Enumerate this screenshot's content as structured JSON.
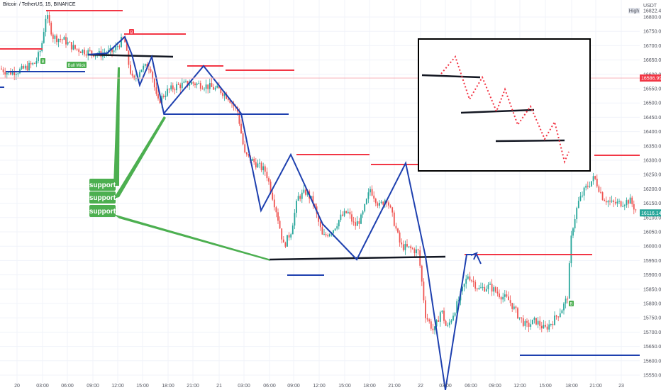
{
  "header": {
    "symbol_line": "Bitcoin / TetherUS, 15, BINANCE"
  },
  "chart_data": {
    "type": "candlestick",
    "title": "Bitcoin / TetherUS, 15, BINANCE",
    "currency_label": "USDT",
    "high_label": "High",
    "high_value": "16822.41",
    "price_badges": [
      {
        "label": "16586.99",
        "value": 16586.99,
        "color": "#f23645"
      },
      {
        "label": "16116.14",
        "value": 16116.14,
        "color": "#26a69a"
      }
    ],
    "y_ticks": [
      "16800.00",
      "16750.00",
      "16700.00",
      "16650.00",
      "16600.00",
      "16550.00",
      "16500.00",
      "16450.00",
      "16400.00",
      "16350.00",
      "16300.00",
      "16250.00",
      "16200.00",
      "16150.00",
      "16100.00",
      "16050.00",
      "16000.00",
      "15950.00",
      "15900.00",
      "15850.00",
      "15800.00",
      "15750.00",
      "15700.00",
      "15650.00",
      "15600.00",
      "15550.00"
    ],
    "ylim": [
      15540,
      16850
    ],
    "x_ticks": [
      "20",
      "03:00",
      "06:00",
      "09:00",
      "12:00",
      "15:00",
      "18:00",
      "21:00",
      "21",
      "03:00",
      "06:00",
      "09:00",
      "12:00",
      "15:00",
      "18:00",
      "21:00",
      "22",
      "03:00",
      "06:00",
      "09:00",
      "12:00",
      "15:00",
      "18:00",
      "21:00",
      "23"
    ],
    "grid": true,
    "up_color": "#26a69a",
    "down_color": "#ef5350",
    "annotations": [
      {
        "text": "support",
        "color": "#4caf50"
      },
      {
        "text": "support",
        "color": "#4caf50"
      },
      {
        "text": "support",
        "color": "#4caf50"
      },
      {
        "text": "Bull Wick",
        "color": "#4caf50"
      },
      {
        "text": "B",
        "color": "#4caf50"
      },
      {
        "text": "B",
        "color": "#f23645"
      },
      {
        "text": "B",
        "color": "#4caf50"
      }
    ],
    "levels": {
      "resistance_color": "#f23645",
      "support_color": "#1e40af",
      "trend_color": "#1e40af",
      "black_color": "#000000"
    }
  }
}
